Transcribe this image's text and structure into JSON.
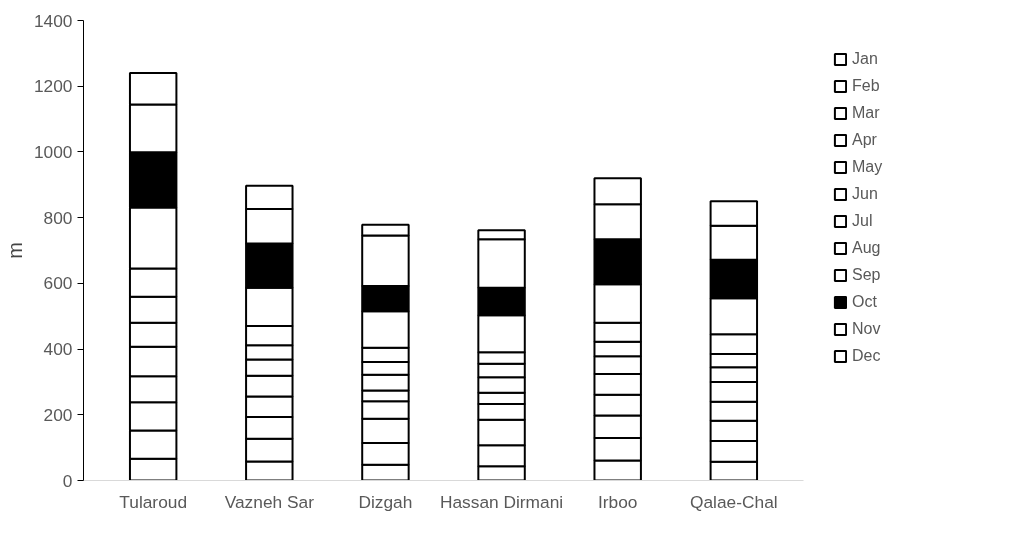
{
  "chart_data": {
    "type": "bar",
    "stacked": true,
    "ylabel": "m",
    "categories": [
      "Tularoud",
      "Vazneh Sar",
      "Dizgah",
      "Hassan Dirmani",
      "Irboo",
      "Qalae-Chal"
    ],
    "ylim": [
      0,
      1400
    ],
    "yticks": [
      0,
      200,
      400,
      600,
      800,
      1000,
      1200,
      1400
    ],
    "grid": false,
    "legend": "right",
    "series": [
      {
        "name": "Jan",
        "color": "#ffffff",
        "values": [
          66,
          58,
          48,
          43,
          61,
          57
        ]
      },
      {
        "name": "Feb",
        "color": "#ffffff",
        "values": [
          86,
          69,
          66,
          64,
          68,
          63
        ]
      },
      {
        "name": "Mar",
        "color": "#ffffff",
        "values": [
          86,
          66,
          74,
          78,
          69,
          62
        ]
      },
      {
        "name": "Apr",
        "color": "#ffffff",
        "values": [
          79,
          63,
          53,
          48,
          63,
          58
        ]
      },
      {
        "name": "May",
        "color": "#ffffff",
        "values": [
          90,
          63,
          33,
          34,
          63,
          60
        ]
      },
      {
        "name": "Jun",
        "color": "#ffffff",
        "values": [
          73,
          49,
          48,
          47,
          54,
          45
        ]
      },
      {
        "name": "Jul",
        "color": "#ffffff",
        "values": [
          79,
          44,
          39,
          41,
          44,
          40
        ]
      },
      {
        "name": "Aug",
        "color": "#ffffff",
        "values": [
          86,
          58,
          43,
          35,
          58,
          60
        ]
      },
      {
        "name": "Sep",
        "color": "#ffffff",
        "values": [
          186,
          117,
          111,
          113,
          117,
          110
        ]
      },
      {
        "name": "Oct",
        "color": "#000000",
        "values": [
          168,
          134,
          77,
          84,
          137,
          117
        ]
      },
      {
        "name": "Nov",
        "color": "#ffffff",
        "values": [
          145,
          105,
          154,
          147,
          107,
          103
        ]
      },
      {
        "name": "Dec",
        "color": "#ffffff",
        "values": [
          96,
          71,
          32,
          28,
          79,
          75
        ]
      }
    ]
  }
}
